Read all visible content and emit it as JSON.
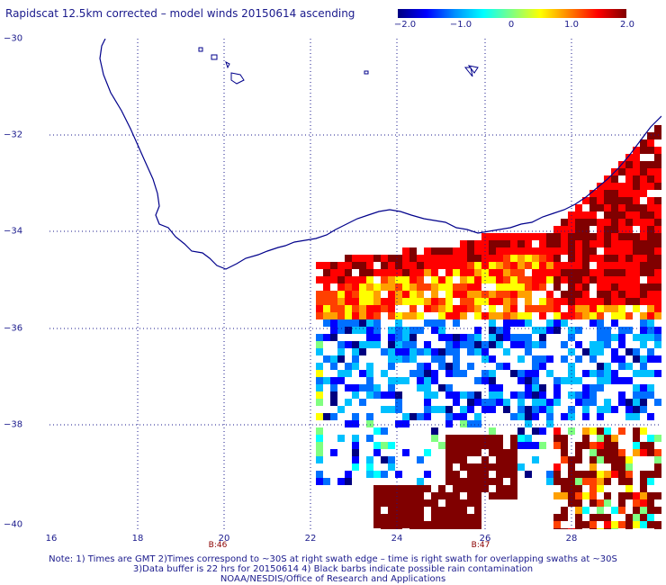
{
  "title": "Rapidscat 12.5km corrected – model winds 20150614 ascending",
  "colorbar": {
    "ticks": [
      "−2.0",
      "−1.0",
      "0",
      "1.0",
      "2.0"
    ],
    "colors": [
      "#000080",
      "#0000ff",
      "#0090ff",
      "#00ffff",
      "#80ff80",
      "#ffff00",
      "#ff8000",
      "#ff0000",
      "#800000"
    ]
  },
  "map": {
    "lat_labels": [
      "−30",
      "−32",
      "−34",
      "−36",
      "−38",
      "−40"
    ],
    "lon_labels": [
      "16",
      "18",
      "20",
      "22",
      "24",
      "26",
      "28"
    ],
    "time_labels": [
      "B:46",
      "B:47"
    ],
    "coastline_color": "#00008b",
    "grid_color": "#1a1a8c"
  },
  "notes": {
    "line1": "Note: 1) Times are GMT 2)Times correspond to ~30S at right swath edge – time is right swath for overlapping swaths at ~30S",
    "line2": "3)Data buffer is 22 hrs for 20150614 4) Black barbs indicate possible rain contamination",
    "credit": "NOAA/NESDIS/Office of Research and Applications"
  }
}
